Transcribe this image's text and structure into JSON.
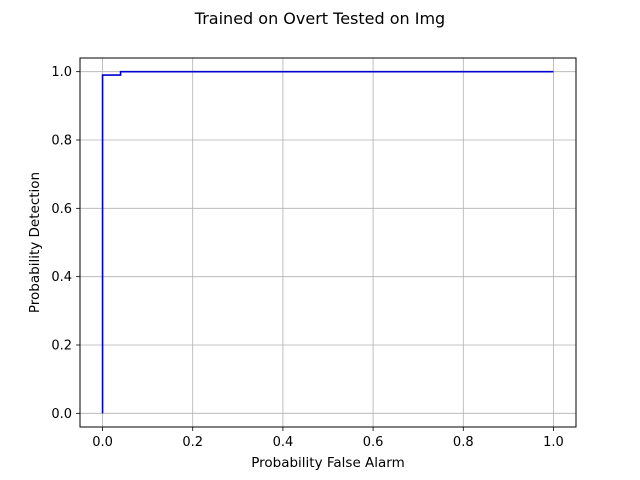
{
  "chart_data": {
    "type": "line",
    "title": "Trained on Overt Tested on Img",
    "xlabel": "Probability False Alarm",
    "ylabel": "Probability Detection",
    "xlim": [
      -0.05,
      1.05
    ],
    "ylim": [
      -0.04,
      1.04
    ],
    "xticks": [
      0.0,
      0.2,
      0.4,
      0.6,
      0.8,
      1.0
    ],
    "xtick_labels": [
      "0.0",
      "0.2",
      "0.4",
      "0.6",
      "0.8",
      "1.0"
    ],
    "yticks": [
      0.0,
      0.2,
      0.4,
      0.6,
      0.8,
      1.0
    ],
    "ytick_labels": [
      "0.0",
      "0.2",
      "0.4",
      "0.6",
      "0.8",
      "1.0"
    ],
    "grid": true,
    "series": [
      {
        "color": "#0000cc",
        "x": [
          0.0,
          0.0,
          0.04,
          0.04,
          1.0
        ],
        "y": [
          0.0,
          0.99,
          0.99,
          1.0,
          1.0
        ]
      }
    ]
  }
}
